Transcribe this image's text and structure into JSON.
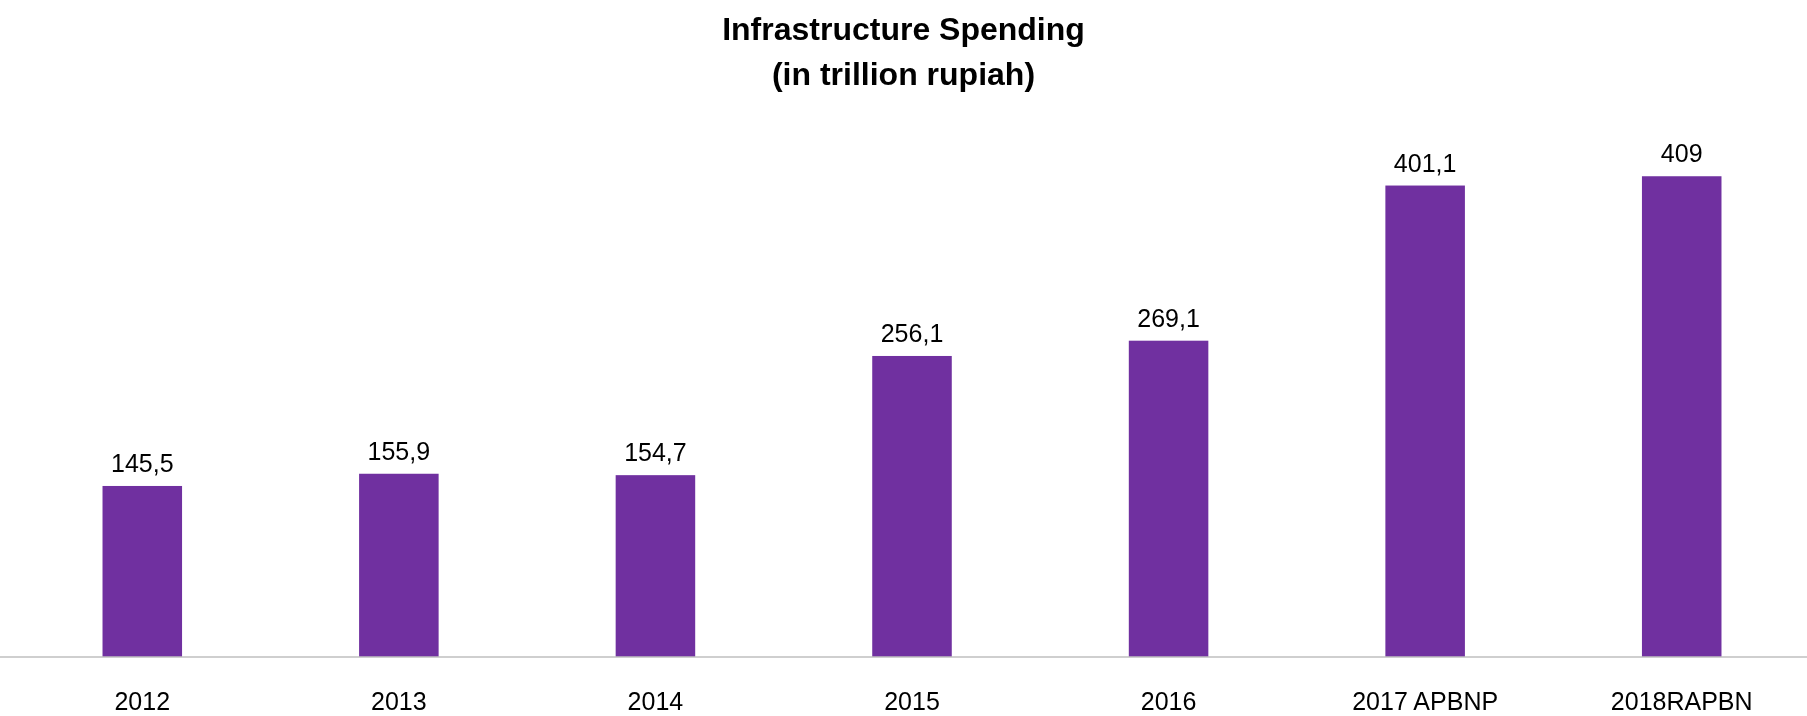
{
  "chart_data": {
    "type": "bar",
    "title": "Infrastructure Spending",
    "subtitle": "(in trillion rupiah)",
    "categories": [
      "2012",
      "2013",
      "2014",
      "2015",
      "2016",
      "2017 APBNP",
      "2018RAPBN"
    ],
    "values": [
      145.5,
      155.9,
      154.7,
      256.1,
      269.1,
      401.1,
      409
    ],
    "value_labels": [
      "145,5",
      "155,9",
      "154,7",
      "256,1",
      "269,1",
      "401,1",
      "409"
    ],
    "color": "#7030a0"
  }
}
